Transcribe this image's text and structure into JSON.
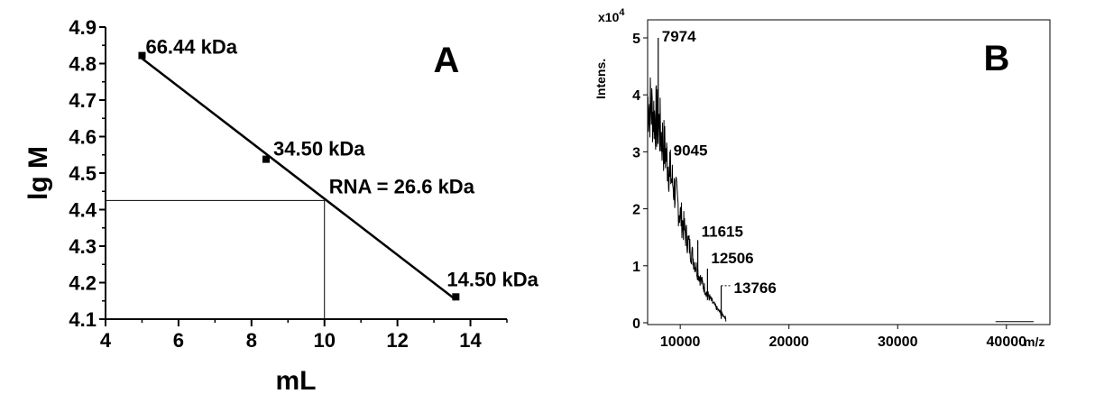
{
  "chart_data": [
    {
      "type": "scatter",
      "panel_label": "A",
      "xlabel": "mL",
      "ylabel": "lg M",
      "xlim": [
        4,
        15
      ],
      "ylim": [
        4.1,
        4.9
      ],
      "x_ticks": [
        4,
        6,
        8,
        10,
        12,
        14
      ],
      "y_ticks": [
        4.1,
        4.2,
        4.3,
        4.4,
        4.5,
        4.6,
        4.7,
        4.8,
        4.9
      ],
      "points": [
        {
          "x": 5.0,
          "y": 4.822,
          "label": "66.44 kDa"
        },
        {
          "x": 8.4,
          "y": 4.538,
          "label": "34.50 kDa"
        },
        {
          "x": 13.6,
          "y": 4.161,
          "label": "14.50 kDa"
        }
      ],
      "fit_line": {
        "x": [
          5.0,
          13.6
        ],
        "y": [
          4.814,
          4.153
        ]
      },
      "marker": {
        "x": 10.0,
        "y": 4.425,
        "label": "RNA = 26.6 kDa"
      }
    },
    {
      "type": "line",
      "panel_label": "B",
      "xlabel": "m/z",
      "ylabel": "Intens.",
      "y_multiplier": "x10",
      "y_exponent": "4",
      "xlim": [
        7000,
        44000
      ],
      "ylim": [
        0,
        5.2
      ],
      "x_ticks": [
        10000,
        20000,
        30000,
        40000
      ],
      "x_tick_labels": [
        "10000",
        "20000",
        "30000",
        "40000"
      ],
      "y_ticks": [
        0,
        1,
        2,
        3,
        4,
        5
      ],
      "y_tick_labels": [
        "0",
        "1",
        "2",
        "3",
        "4",
        "5"
      ],
      "peaks": [
        {
          "x": 7974,
          "y": 5.0,
          "label": "7974"
        },
        {
          "x": 9045,
          "y": 3.0,
          "label": "9045"
        },
        {
          "x": 11615,
          "y": 1.45,
          "label": "11615"
        },
        {
          "x": 12506,
          "y": 0.95,
          "label": "12506"
        },
        {
          "x": 13766,
          "y": 0.65,
          "label": "13766"
        }
      ],
      "envelope": {
        "x": [
          7000,
          7500,
          8000,
          8500,
          9000,
          9500,
          10000,
          10500,
          11000,
          11500,
          12000,
          12500,
          13000,
          13500,
          14000,
          14200
        ],
        "y": [
          3.9,
          3.7,
          3.5,
          3.1,
          2.7,
          2.3,
          1.9,
          1.55,
          1.25,
          0.95,
          0.7,
          0.5,
          0.35,
          0.22,
          0.12,
          0.08
        ]
      },
      "baseline_segment": {
        "x": [
          39000,
          42500
        ],
        "y": [
          0.02,
          0.02
        ]
      }
    }
  ]
}
